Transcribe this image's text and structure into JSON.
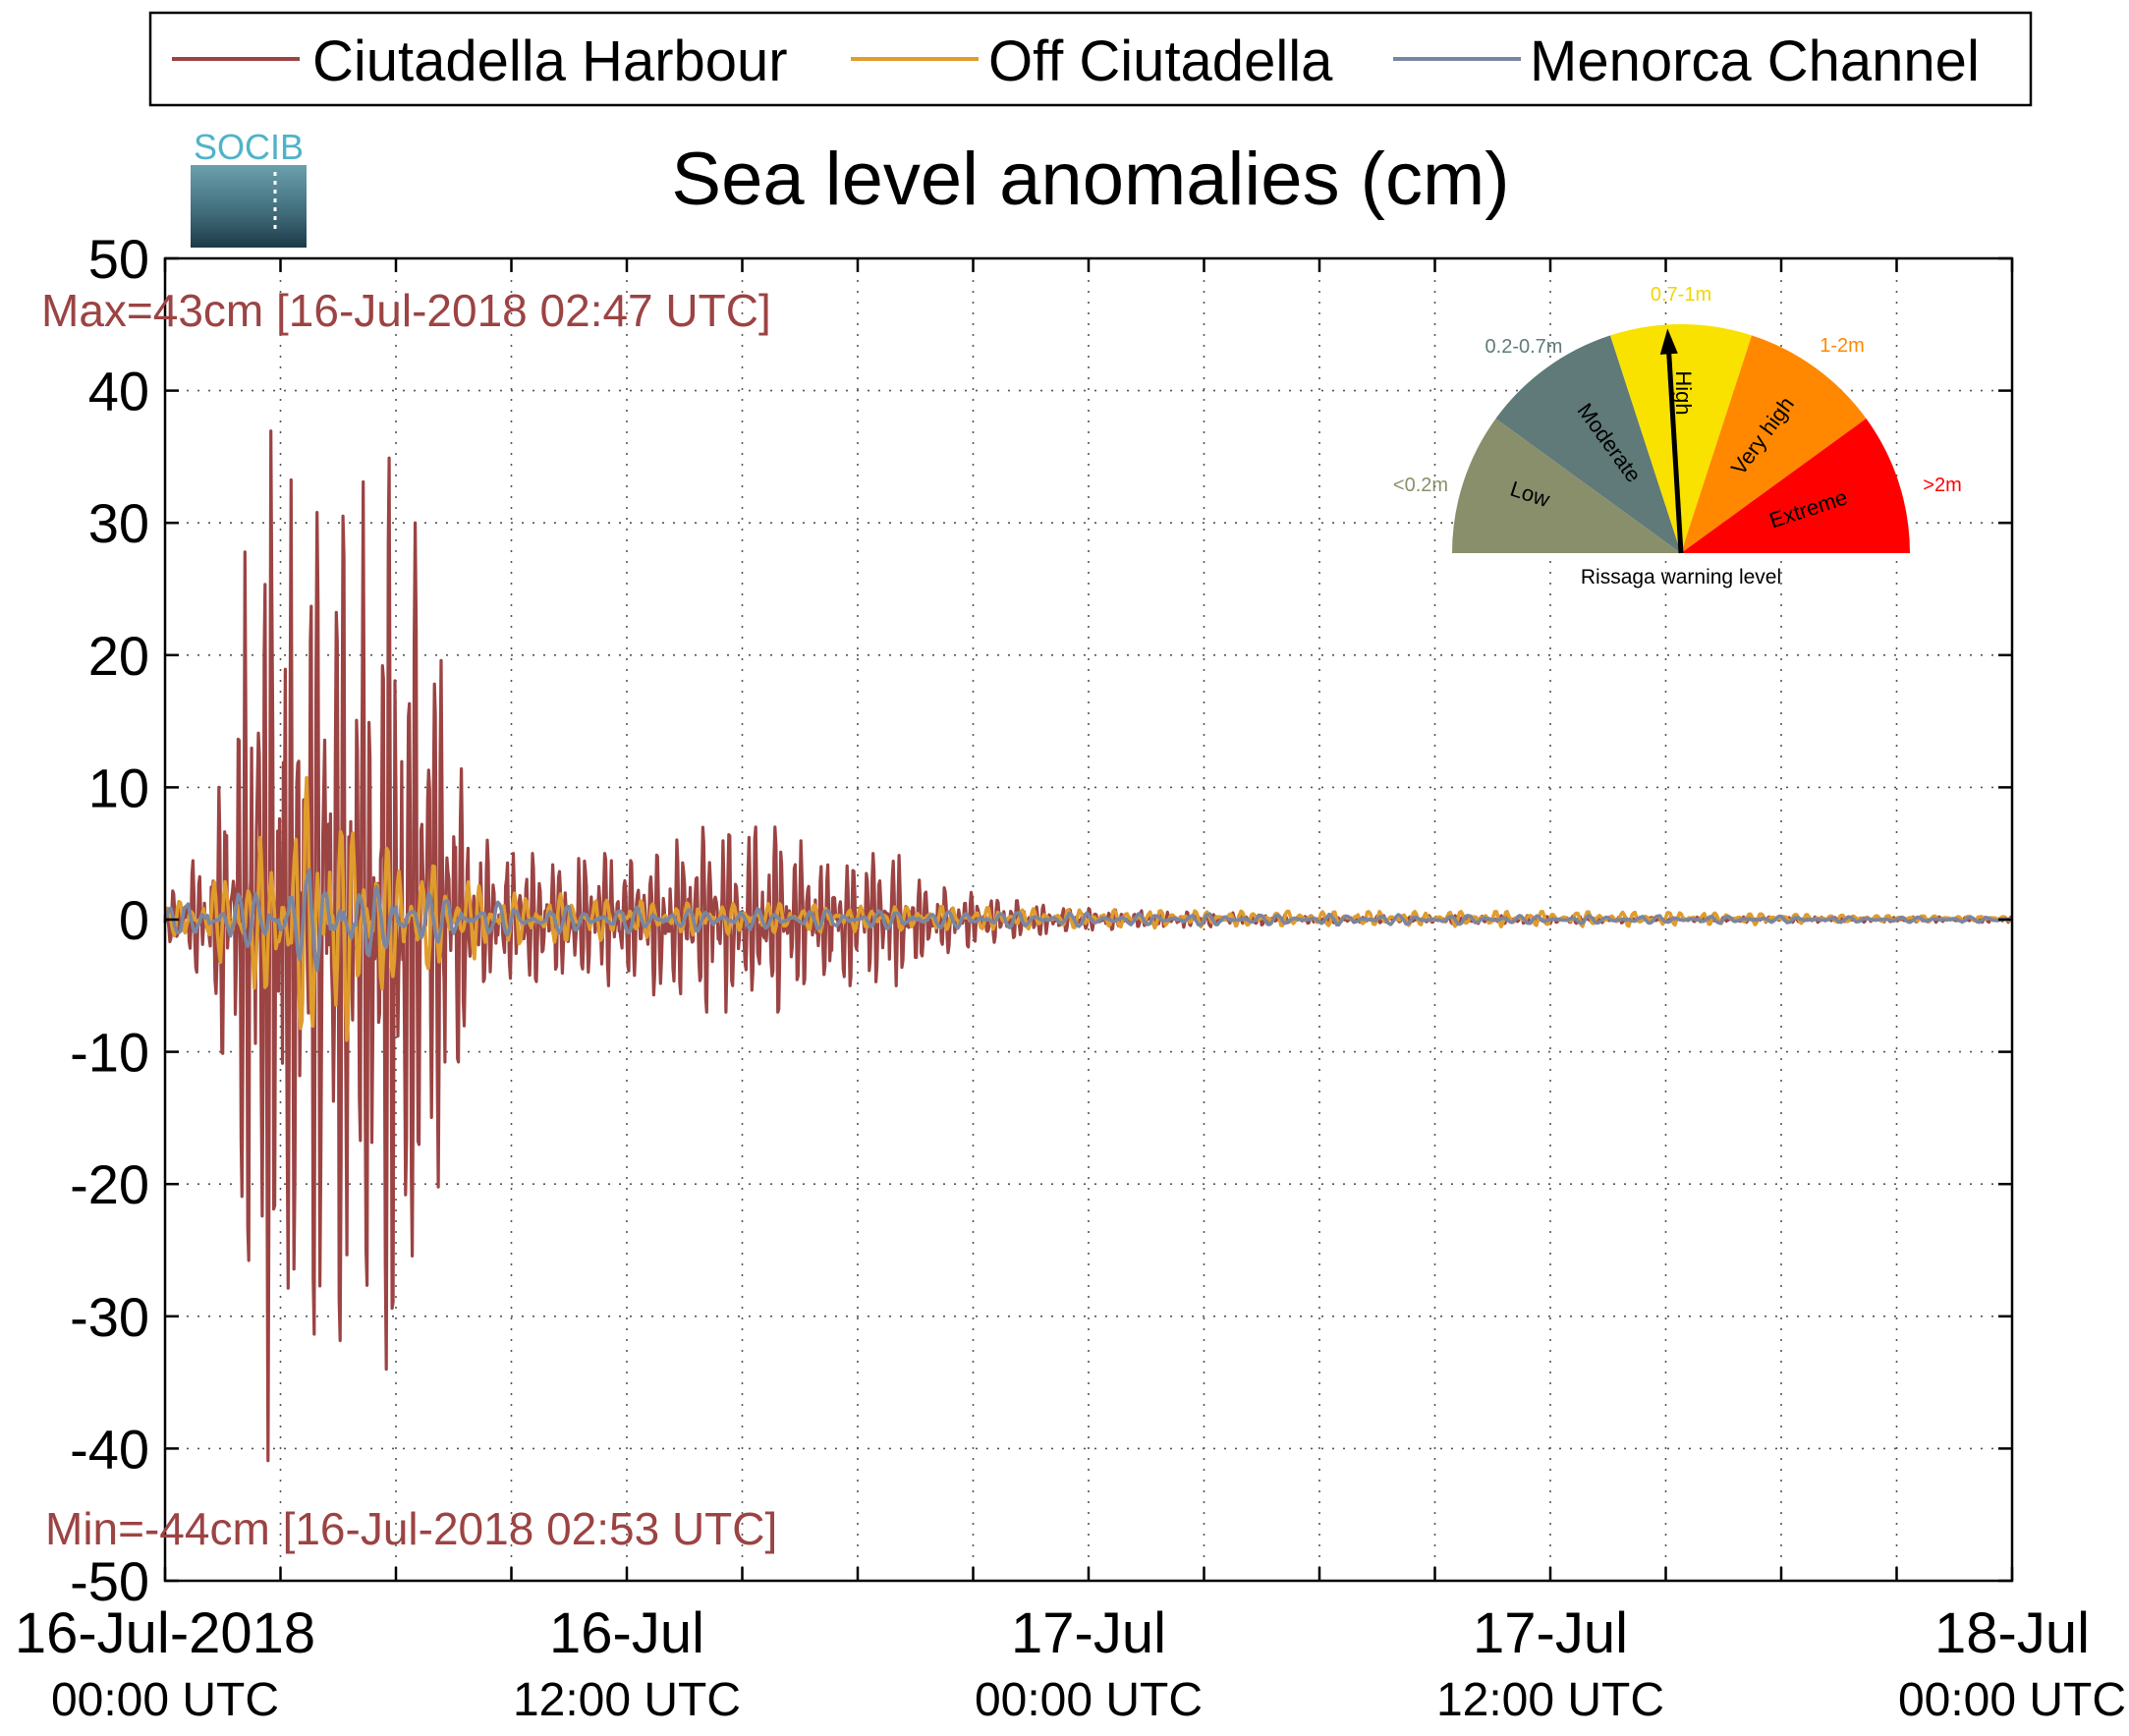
{
  "chart_data": {
    "type": "line",
    "title": "Sea level anomalies (cm)",
    "logo_text": "SOCIB",
    "ylim": [
      -50,
      50
    ],
    "yticks": [
      -50,
      -40,
      -30,
      -20,
      -10,
      0,
      10,
      20,
      30,
      40,
      50
    ],
    "y_tick_labels": [
      "-50",
      "-40",
      "-30",
      "-20",
      "-10",
      "0",
      "10",
      "20",
      "30",
      "40",
      "50"
    ],
    "xlim": [
      "2018-07-16T00:00",
      "2018-07-18T00:00"
    ],
    "x_tick_labels": [
      {
        "time": "2018-07-16T00:00",
        "line1": "16-Jul-2018",
        "line2": "00:00 UTC"
      },
      {
        "time": "2018-07-16T12:00",
        "line1": "16-Jul",
        "line2": "12:00 UTC"
      },
      {
        "time": "2018-07-17T00:00",
        "line1": "17-Jul",
        "line2": "00:00 UTC"
      },
      {
        "time": "2018-07-17T12:00",
        "line1": "17-Jul",
        "line2": "12:00 UTC"
      },
      {
        "time": "2018-07-18T00:00",
        "line1": "18-Jul",
        "line2": "00:00 UTC"
      }
    ],
    "x_minor_ticks_hours": [
      0,
      3,
      6,
      9,
      12,
      15,
      18,
      21,
      24,
      27,
      30,
      33,
      36,
      39,
      42,
      45,
      48
    ],
    "grid": true,
    "legend": {
      "placement": "top",
      "entries": [
        {
          "name": "Ciutadella Harbour",
          "color": "#9c4343"
        },
        {
          "name": "Off Ciutadella",
          "color": "#e09c2c"
        },
        {
          "name": "Menorca Channel",
          "color": "#7a86a0"
        }
      ]
    },
    "annotations": {
      "max": "Max=43cm [16-Jul-2018 02:47 UTC]",
      "min": "Min=-44cm [16-Jul-2018 02:53 UTC]",
      "color": "#9c4343"
    },
    "series_envelope": [
      {
        "name": "Ciutadella Harbour",
        "color": "#9c4343",
        "time_hours": [
          0,
          0.5,
          1.0,
          1.5,
          2.0,
          2.5,
          2.8,
          3.0,
          3.5,
          4.0,
          4.5,
          5.0,
          5.5,
          6.0,
          6.5,
          7.0,
          7.5,
          8.0,
          8.5,
          9.0,
          10,
          11,
          12,
          13,
          14,
          15,
          16,
          17,
          18,
          19,
          20,
          21,
          22,
          23,
          24,
          26,
          28,
          30,
          32,
          36,
          40,
          44,
          48
        ],
        "amplitude_cm": [
          1,
          4,
          5,
          12,
          26,
          38,
          43,
          36,
          31,
          34,
          35,
          34,
          31,
          37,
          30,
          25,
          15,
          6,
          6,
          5,
          5,
          5,
          5,
          6,
          7,
          7,
          7,
          5,
          5,
          5,
          3,
          2,
          1.5,
          1,
          0.8,
          0.6,
          0.5,
          0.3,
          0.3,
          0.3,
          0.2,
          0.2,
          0.2
        ]
      },
      {
        "name": "Off Ciutadella",
        "color": "#e09c2c",
        "time_hours": [
          0,
          1,
          2,
          3,
          4,
          5,
          6,
          7,
          8,
          9,
          10,
          12,
          14,
          16,
          18,
          20,
          24,
          30,
          36,
          40,
          44,
          48
        ],
        "amplitude_cm": [
          1,
          2,
          5,
          8,
          12,
          8,
          5,
          4,
          3,
          2,
          2,
          1.5,
          1.2,
          1.2,
          1,
          1,
          0.7,
          0.6,
          0.6,
          0.5,
          0.3,
          0.2
        ]
      },
      {
        "name": "Menorca Channel",
        "color": "#7a86a0",
        "time_hours": [
          0,
          1,
          2,
          3,
          4,
          5,
          6,
          7,
          8,
          9,
          10,
          12,
          16,
          20,
          24,
          30,
          36,
          40,
          44,
          48
        ],
        "amplitude_cm": [
          1,
          1.5,
          2,
          3,
          4,
          3,
          2.5,
          2,
          1.5,
          1.2,
          1,
          1,
          0.8,
          0.7,
          0.5,
          0.4,
          0.3,
          0.3,
          0.2,
          0.2
        ]
      }
    ],
    "gauge": {
      "title": "Rissaga warning level",
      "needle_level": "High",
      "sectors": [
        {
          "label": "Low",
          "range": "<0.2m",
          "color": "#8a8f6b",
          "range_color": "#8a8f6b"
        },
        {
          "label": "Moderate",
          "range": "0.2-0.7m",
          "color": "#5f7a78",
          "range_color": "#5f7a78"
        },
        {
          "label": "High",
          "range": "0.7-1m",
          "color": "#f9e100",
          "range_color": "#f2d500"
        },
        {
          "label": "Very high",
          "range": "1-2m",
          "color": "#ff8800",
          "range_color": "#ff8800"
        },
        {
          "label": "Extreme",
          "range": ">2m",
          "color": "#ff0000",
          "range_color": "#ff0000"
        }
      ]
    }
  }
}
